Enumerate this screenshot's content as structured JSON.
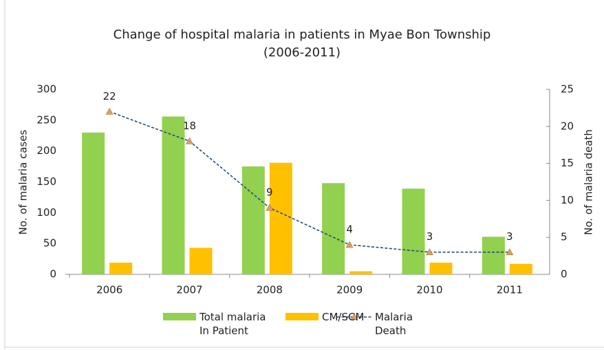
{
  "chart_data": {
    "type": "bar",
    "title": "Change of hospital malaria in patients in Myae Bon Township\n(2006-2011)",
    "y_label": "No. of malaria cases",
    "y2_label": "No. of malaria death",
    "categories": [
      "2006",
      "2007",
      "2008",
      "2009",
      "2010",
      "2011"
    ],
    "series": [
      {
        "name": "Total malaria\nIn Patient",
        "color": "#92d050",
        "values": [
          230,
          256,
          175,
          148,
          139,
          61
        ]
      },
      {
        "name": "CM/SCM",
        "color": "#ffc000",
        "values": [
          19,
          43,
          181,
          5,
          19,
          17
        ]
      },
      {
        "name": "Malaria\nDeath",
        "color": "#1f4e79",
        "type": "line",
        "axis": "y2",
        "marker_color": "#d9a066",
        "values": [
          22,
          18,
          9,
          4,
          3,
          3
        ]
      }
    ],
    "ylim": [
      0,
      300
    ],
    "yticks": [
      0,
      50,
      100,
      150,
      200,
      250,
      300
    ],
    "y2lim": [
      0,
      25
    ],
    "y2ticks": [
      0,
      5,
      10,
      15,
      20,
      25
    ],
    "legend": "bottom"
  }
}
